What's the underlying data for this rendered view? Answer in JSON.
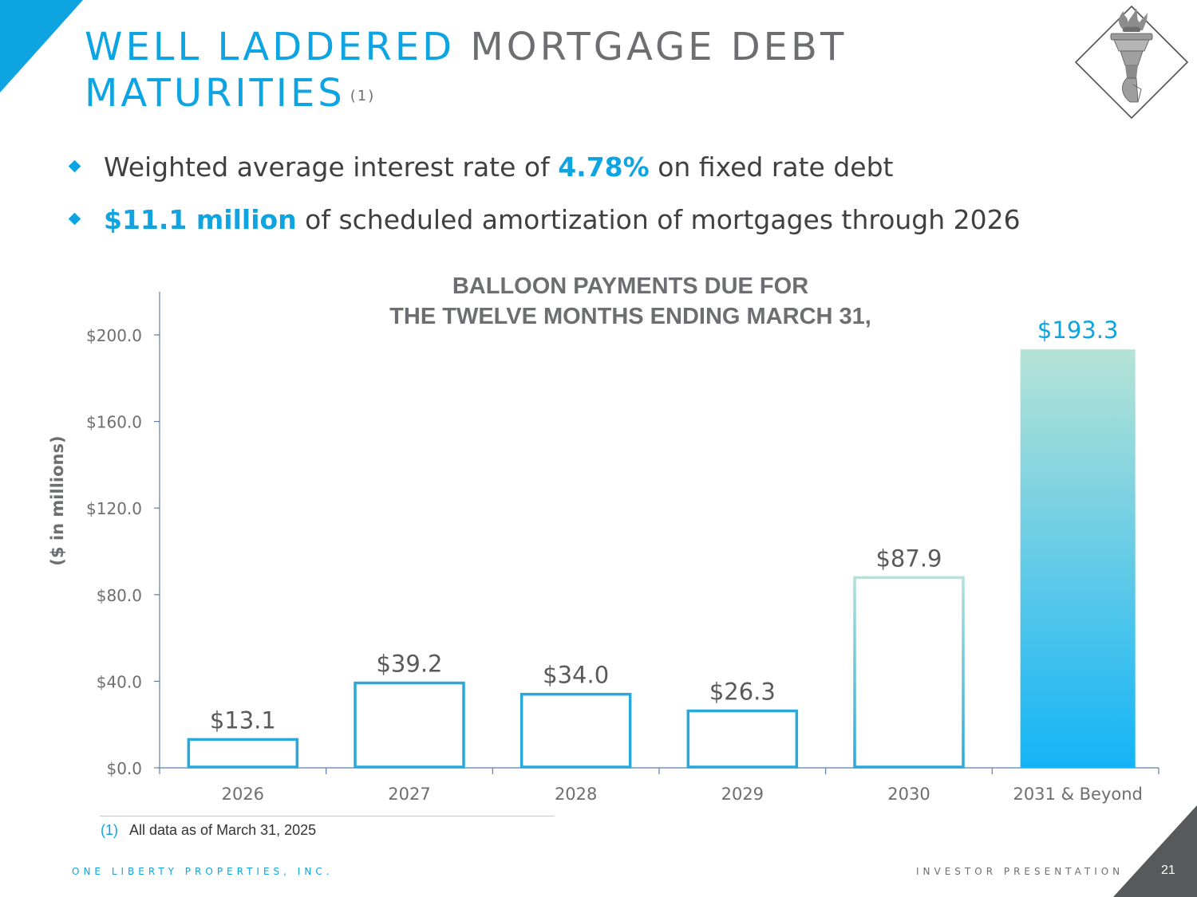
{
  "header": {
    "title_accent": "WELL LADDERED",
    "title_rest": "MORTGAGE DEBT",
    "title_line2": "MATURITIES",
    "title_footnote_ref": "(1)"
  },
  "bullets": [
    {
      "pre": "Weighted average interest rate of ",
      "highlight": "4.78%",
      "post": " on fixed rate debt"
    },
    {
      "pre": "",
      "highlight": "$11.1 million",
      "post": " of scheduled amortization of mortgages through 2026"
    }
  ],
  "chart_data": {
    "type": "bar",
    "title_line1": "BALLOON PAYMENTS DUE FOR",
    "title_line2": "THE TWELVE MONTHS ENDING MARCH 31,",
    "ylabel": "($ in millions)",
    "xlabel": "",
    "categories": [
      "2026",
      "2027",
      "2028",
      "2029",
      "2030",
      "2031 & Beyond"
    ],
    "values": [
      13.1,
      39.2,
      34.0,
      26.3,
      87.9,
      193.3
    ],
    "data_labels": [
      "$13.1",
      "$39.2",
      "$34.0",
      "$26.3",
      "$87.9",
      "$193.3"
    ],
    "ylim": [
      0,
      220
    ],
    "yticks": [
      0,
      40,
      80,
      120,
      160,
      200
    ],
    "ytick_labels": [
      "$0.0",
      "$40.0",
      "$80.0",
      "$120.0",
      "$160.0",
      "$200.0"
    ],
    "grid": false,
    "legend": "none",
    "colors": {
      "outline_blue": "#29a8dc",
      "outline_mint": "#b2e2d8",
      "gradient_top": "#b6e3d6",
      "gradient_bottom": "#14b4f7",
      "label_highlight": "#0ea4e2",
      "axis": "#5b7fa8"
    }
  },
  "footnote": {
    "number": "(1)",
    "text": "All data as of March 31, 2025"
  },
  "footer": {
    "company": "ONE LIBERTY PROPERTIES, INC.",
    "presentation": "INVESTOR PRESENTATION",
    "page": "21"
  },
  "theme": {
    "accent": "#0ea4e2",
    "dark_corner": "#58595b",
    "text_gray": "#6d6e71"
  },
  "icons": {
    "logo": "statue-of-liberty-torch-icon",
    "bullet": "diamond-bullet-icon"
  }
}
